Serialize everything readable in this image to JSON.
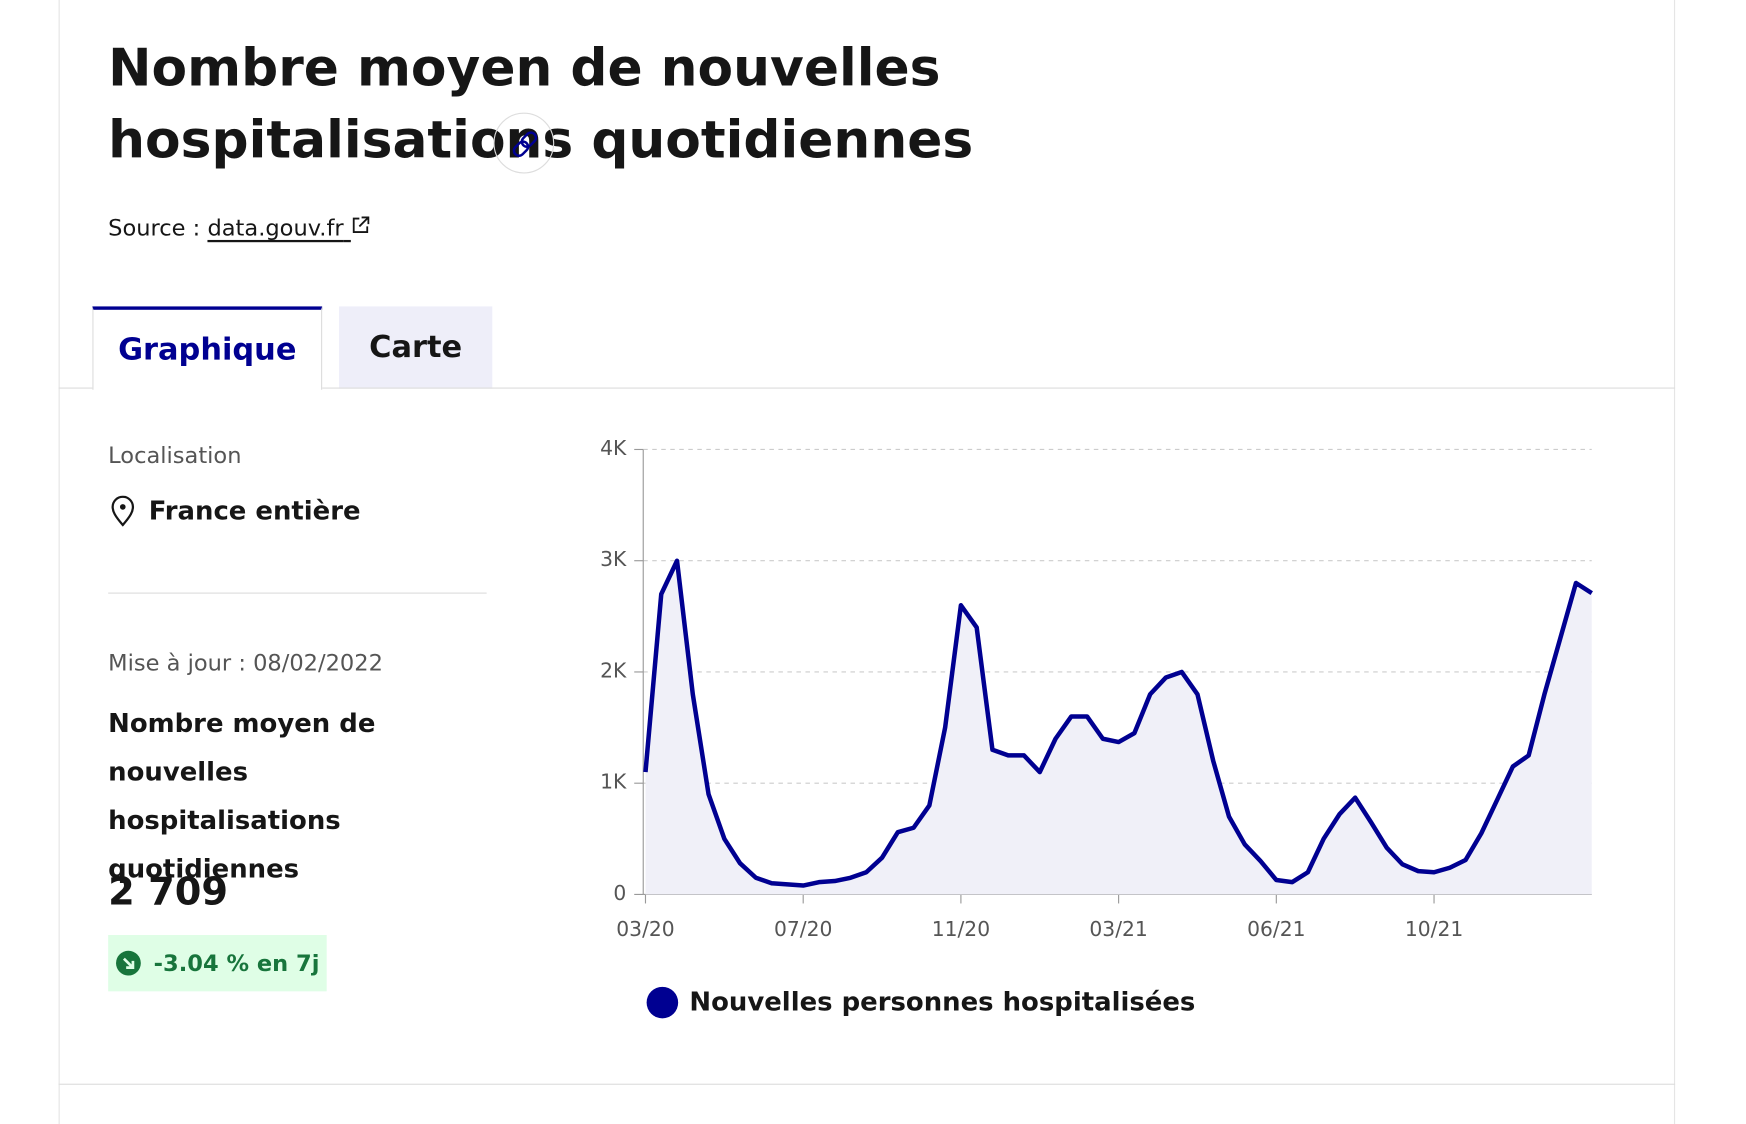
{
  "header": {
    "title": "Nombre moyen de nouvelles hospitalisations quotidiennes",
    "source_label": "Source :",
    "source_link": "data.gouv.fr"
  },
  "tabs": [
    "Graphique",
    "Carte"
  ],
  "panel": {
    "location_label": "Localisation",
    "location": "France entière",
    "updated": "Mise à jour : 08/02/2022",
    "indicator_title": "Nombre moyen de nouvelles hospitalisations quotidiennes",
    "value": "2 709",
    "change": "-3.04 % en 7j"
  },
  "chart_data": {
    "type": "line",
    "categories": [
      "03/20",
      null,
      null,
      null,
      null,
      null,
      null,
      null,
      null,
      null,
      "07/20",
      null,
      null,
      null,
      null,
      null,
      null,
      null,
      null,
      null,
      "11/20",
      null,
      null,
      null,
      null,
      null,
      null,
      null,
      null,
      null,
      "03/21",
      null,
      null,
      null,
      null,
      null,
      null,
      null,
      null,
      null,
      "06/21",
      null,
      null,
      null,
      null,
      null,
      null,
      null,
      null,
      null,
      "10/21",
      null,
      null,
      null,
      null,
      null,
      null,
      null,
      null,
      null,
      null
    ],
    "series": [
      {
        "name": "Nouvelles personnes hospitalisées",
        "color": "#000091",
        "values": [
          1100,
          2700,
          3000,
          1800,
          900,
          500,
          280,
          150,
          100,
          90,
          80,
          110,
          120,
          150,
          200,
          330,
          560,
          600,
          800,
          1500,
          2600,
          2400,
          1300,
          1250,
          1250,
          1100,
          1400,
          1600,
          1600,
          1400,
          1370,
          1450,
          1800,
          1950,
          2000,
          1800,
          1200,
          700,
          450,
          300,
          130,
          110,
          200,
          500,
          720,
          870,
          650,
          420,
          270,
          210,
          200,
          240,
          310,
          550,
          850,
          1150,
          1250,
          1800,
          2300,
          2800,
          2709
        ]
      }
    ],
    "ylim": [
      0,
      4000
    ],
    "yticks": [
      0,
      {
        "value": 1000,
        "label": "1K"
      },
      {
        "value": 2000,
        "label": "2K"
      },
      {
        "value": 3000,
        "label": "3K"
      },
      {
        "value": 4000,
        "label": "4K"
      }
    ],
    "grid": true,
    "area_fill": "#f0f0f8"
  }
}
